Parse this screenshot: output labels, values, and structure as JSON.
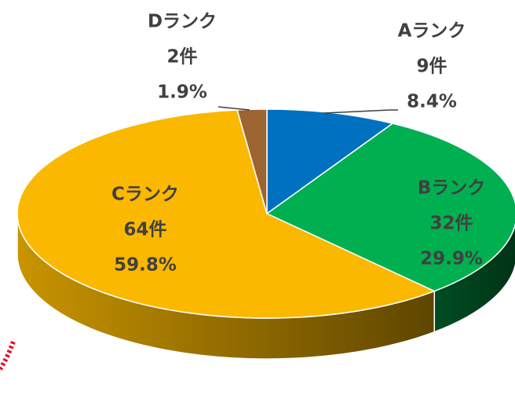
{
  "chart_data": {
    "type": "pie3d",
    "categories": [
      "Aランク",
      "Bランク",
      "Cランク",
      "Dランク"
    ],
    "values": [
      8.4,
      29.9,
      59.8,
      1.9
    ],
    "value_labels": [
      "8.4%",
      "29.9%",
      "59.8%",
      "1.9%"
    ],
    "counts": [
      9,
      32,
      64,
      2
    ],
    "count_labels": [
      "9件",
      "32件",
      "64件",
      "2件"
    ],
    "colors": [
      "#0070c0",
      "#00b050",
      "#fbb800",
      "#9c6431"
    ]
  }
}
